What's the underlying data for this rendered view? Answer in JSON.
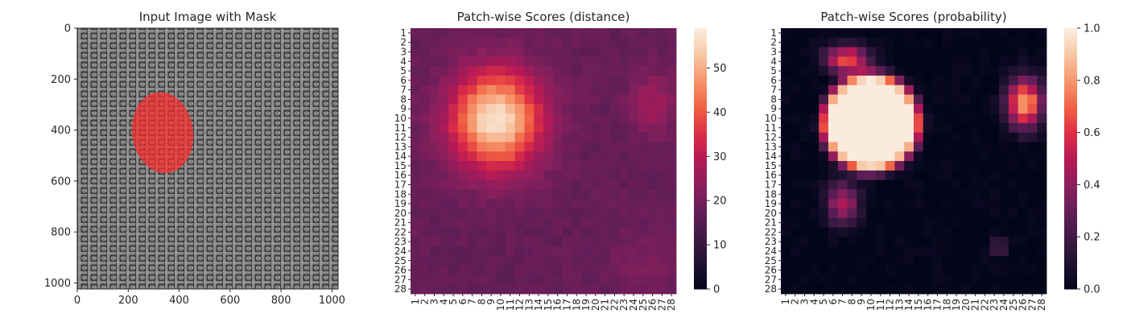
{
  "chart_data": [
    {
      "type": "image",
      "title": "Input Image with Mask",
      "xlabel": "",
      "ylabel": "",
      "xticks": [
        0,
        200,
        400,
        600,
        800,
        1000
      ],
      "yticks": [
        0,
        200,
        400,
        600,
        800,
        1000
      ],
      "xlim": [
        0,
        1024
      ],
      "ylim": [
        1024,
        0
      ],
      "texture": "gray woven burlap fabric",
      "mask": {
        "shape": "ellipse",
        "center_x": 335,
        "center_y": 410,
        "radius_x": 120,
        "radius_y": 160,
        "color": "#ff2a2a",
        "opacity": 0.7
      }
    },
    {
      "type": "heatmap",
      "title": "Patch-wise Scores (distance)",
      "xlabel": "",
      "ylabel": "",
      "grid_size": 28,
      "tick_labels": [
        "1",
        "2",
        "3",
        "4",
        "5",
        "6",
        "7",
        "8",
        "9",
        "10",
        "11",
        "12",
        "13",
        "14",
        "15",
        "16",
        "17",
        "18",
        "19",
        "20",
        "21",
        "22",
        "23",
        "24",
        "25",
        "26",
        "27",
        "28"
      ],
      "colormap": "rocket",
      "colorbar": {
        "min": 0,
        "max": 59,
        "ticks": [
          0,
          10,
          20,
          30,
          40,
          50
        ]
      },
      "background": 18,
      "components": [
        {
          "x": 9.5,
          "y": 10.2,
          "sx": 3.3,
          "sy": 3.6,
          "amp": 40
        },
        {
          "x": 26,
          "y": 8.5,
          "sx": 1.7,
          "sy": 2.2,
          "amp": 9
        },
        {
          "x": 25.5,
          "y": 25.5,
          "sx": 2.5,
          "sy": 2.5,
          "amp": 3.5
        }
      ]
    },
    {
      "type": "heatmap",
      "title": "Patch-wise Scores (probability)",
      "xlabel": "",
      "ylabel": "",
      "grid_size": 28,
      "tick_labels": [
        "1",
        "2",
        "3",
        "4",
        "5",
        "6",
        "7",
        "8",
        "9",
        "10",
        "11",
        "12",
        "13",
        "14",
        "15",
        "16",
        "17",
        "18",
        "19",
        "20",
        "21",
        "22",
        "23",
        "24",
        "25",
        "26",
        "27",
        "28"
      ],
      "colormap": "rocket",
      "colorbar": {
        "min": 0.0,
        "max": 1.0,
        "ticks": [
          "0.0",
          "0.2",
          "0.4",
          "0.6",
          "0.8",
          "1.0"
        ]
      },
      "background": 0,
      "components": [
        {
          "x": 10,
          "y": 10.5,
          "sx": 4.8,
          "sy": 4.8,
          "amp": 1.3,
          "power": 4
        },
        {
          "x": 26.2,
          "y": 8.4,
          "sx": 1.3,
          "sy": 1.8,
          "amp": 0.85
        },
        {
          "x": 7.5,
          "y": 3.8,
          "sx": 1.6,
          "sy": 1.0,
          "amp": 0.7
        },
        {
          "x": 7,
          "y": 19,
          "sx": 1.2,
          "sy": 1.6,
          "amp": 0.5
        },
        {
          "x": 23.5,
          "y": 23.5,
          "sx": 0.6,
          "sy": 0.6,
          "amp": 0.3
        }
      ]
    }
  ]
}
